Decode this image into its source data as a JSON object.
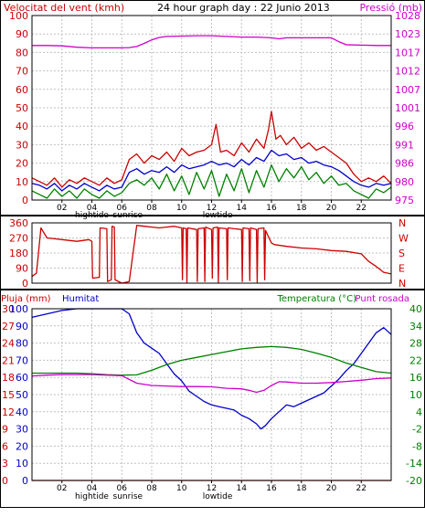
{
  "colors": {
    "red": "#cc0000",
    "magenta": "#cc00cc",
    "blue": "#0000cc",
    "green": "#008000",
    "grid": "#c0c0c0",
    "frame": "#000000"
  },
  "chart_data": [
    {
      "id": "wind-pressure",
      "type": "line",
      "title": "24 hour graph day : 22 Junio 2013",
      "left_axis_title": "Velocitat del vent (kmh)",
      "right_axis_title": "Pressió (mb)",
      "xlim": [
        0,
        24
      ],
      "x_ticks": [
        2,
        4,
        6,
        8,
        10,
        12,
        14,
        16,
        18,
        20,
        22
      ],
      "x_tick_labels": [
        "02",
        "04",
        "06",
        "08",
        "10",
        "12",
        "14",
        "16",
        "18",
        "20",
        "22"
      ],
      "x_marker_labels": [
        {
          "x": 4.0,
          "text": "hightide"
        },
        {
          "x": 6.4,
          "text": "sunrise"
        },
        {
          "x": 12.4,
          "text": "lowtide"
        }
      ],
      "left_ylim": [
        0,
        100
      ],
      "left_ticks": [
        0,
        10,
        20,
        30,
        40,
        50,
        60,
        70,
        80,
        90,
        100
      ],
      "right_ylim": [
        975,
        1028
      ],
      "right_tick_labels": [
        "975",
        "980",
        "986",
        "991",
        "996",
        "1001",
        "1007",
        "1012",
        "1017",
        "1023",
        "1028"
      ],
      "series": [
        {
          "name": "Pressió",
          "axis": "right",
          "color": "magenta",
          "x": [
            0,
            1,
            2,
            3,
            4,
            5,
            6,
            6.5,
            7,
            7.5,
            8,
            8.5,
            9,
            10,
            11,
            12,
            13,
            14,
            15,
            16,
            16.5,
            17,
            18,
            19,
            20,
            20.5,
            21,
            22,
            23,
            24
          ],
          "values": [
            1019.4,
            1019.4,
            1019.3,
            1018.9,
            1018.7,
            1018.7,
            1018.7,
            1018.8,
            1019.1,
            1020.0,
            1021.0,
            1021.7,
            1022.0,
            1022.1,
            1022.2,
            1022.2,
            1022.0,
            1021.8,
            1021.8,
            1021.6,
            1021.3,
            1021.6,
            1021.6,
            1021.6,
            1021.6,
            1020.5,
            1019.6,
            1019.5,
            1019.4,
            1019.4
          ]
        },
        {
          "name": "Ratxa",
          "axis": "left",
          "color": "red",
          "x": [
            0,
            0.5,
            1,
            1.5,
            2,
            2.5,
            3,
            3.5,
            4,
            4.5,
            5,
            5.5,
            6,
            6.5,
            7,
            7.5,
            8,
            8.5,
            9,
            9.5,
            10,
            10.5,
            11,
            11.5,
            12,
            12.3,
            12.6,
            13,
            13.5,
            14,
            14.5,
            15,
            15.5,
            15.8,
            16,
            16.3,
            16.6,
            17,
            17.5,
            18,
            18.5,
            19,
            19.5,
            20,
            20.5,
            21,
            21.5,
            22,
            22.5,
            23,
            23.5,
            24
          ],
          "values": [
            12,
            10,
            8,
            12,
            7,
            11,
            9,
            12,
            10,
            8,
            12,
            9,
            11,
            22,
            25,
            20,
            24,
            22,
            26,
            21,
            28,
            24,
            26,
            27,
            30,
            41,
            26,
            27,
            24,
            31,
            26,
            33,
            28,
            38,
            48,
            33,
            35,
            30,
            34,
            28,
            31,
            27,
            29,
            26,
            23,
            20,
            14,
            10,
            12,
            10,
            13,
            9
          ]
        },
        {
          "name": "Velocitat mitjana",
          "axis": "left",
          "color": "blue",
          "x": [
            0,
            0.5,
            1,
            1.5,
            2,
            2.5,
            3,
            3.5,
            4,
            4.5,
            5,
            5.5,
            6,
            6.5,
            7,
            7.5,
            8,
            8.5,
            9,
            9.5,
            10,
            10.5,
            11,
            11.5,
            12,
            12.5,
            13,
            13.5,
            14,
            14.5,
            15,
            15.5,
            16,
            16.5,
            17,
            17.5,
            18,
            18.5,
            19,
            19.5,
            20,
            20.5,
            21,
            21.5,
            22,
            22.5,
            23,
            23.5,
            24
          ],
          "values": [
            9,
            8,
            6,
            9,
            5,
            8,
            6,
            9,
            7,
            5,
            8,
            6,
            7,
            15,
            17,
            14,
            16,
            15,
            18,
            15,
            19,
            17,
            18,
            19,
            21,
            19,
            20,
            18,
            22,
            19,
            23,
            21,
            27,
            24,
            25,
            22,
            23,
            20,
            21,
            19,
            18,
            16,
            13,
            10,
            8,
            7,
            9,
            8,
            9
          ]
        },
        {
          "name": "Velocitat mínima",
          "axis": "left",
          "color": "green",
          "x": [
            0,
            0.5,
            1,
            1.5,
            2,
            2.5,
            3,
            3.5,
            4,
            4.5,
            5,
            5.5,
            6,
            6.5,
            7,
            7.5,
            8,
            8.5,
            9,
            9.5,
            10,
            10.5,
            11,
            11.5,
            12,
            12.5,
            13,
            13.5,
            14,
            14.5,
            15,
            15.5,
            16,
            16.5,
            17,
            17.5,
            18,
            18.5,
            19,
            19.5,
            20,
            20.5,
            21,
            21.5,
            22,
            22.5,
            23,
            23.5,
            24
          ],
          "values": [
            5,
            3,
            1,
            6,
            2,
            5,
            1,
            6,
            3,
            1,
            5,
            2,
            4,
            9,
            11,
            8,
            12,
            6,
            14,
            5,
            13,
            3,
            15,
            6,
            16,
            2,
            14,
            5,
            17,
            4,
            16,
            7,
            19,
            10,
            17,
            12,
            18,
            11,
            15,
            9,
            13,
            8,
            9,
            5,
            3,
            1,
            6,
            4,
            7
          ]
        }
      ]
    },
    {
      "id": "wind-direction",
      "type": "line",
      "xlim": [
        0,
        24
      ],
      "left_ylim": [
        0,
        360
      ],
      "left_ticks": [
        0,
        90,
        180,
        270,
        360
      ],
      "right_labels": [
        {
          "v": 360,
          "text": "N"
        },
        {
          "v": 270,
          "text": "W"
        },
        {
          "v": 180,
          "text": "S"
        },
        {
          "v": 90,
          "text": "E"
        },
        {
          "v": 0,
          "text": "N"
        }
      ],
      "series": [
        {
          "name": "Direcció del vent",
          "color": "red",
          "x": [
            0,
            0.3,
            0.6,
            1.0,
            1.5,
            2.0,
            3.0,
            3.8,
            4.0,
            4.05,
            4.5,
            4.55,
            5.0,
            5.05,
            5.3,
            5.35,
            5.5,
            5.55,
            6.0,
            6.5,
            7.0,
            7.5,
            8.0,
            8.5,
            9.0,
            9.5,
            10.0,
            10.05,
            10.1,
            10.3,
            10.35,
            10.4,
            11.0,
            11.05,
            11.1,
            11.5,
            11.55,
            11.6,
            12.0,
            12.05,
            12.1,
            12.4,
            12.45,
            12.5,
            13.0,
            13.05,
            13.1,
            13.5,
            14.0,
            14.05,
            14.1,
            14.5,
            14.55,
            14.6,
            15.0,
            15.05,
            15.1,
            15.5,
            15.55,
            15.6,
            16.0,
            16.2,
            17.0,
            18.0,
            19.0,
            20.0,
            21.0,
            22.0,
            22.5,
            23.0,
            23.5,
            24
          ],
          "values": [
            40,
            60,
            330,
            270,
            265,
            260,
            250,
            260,
            250,
            30,
            35,
            330,
            325,
            10,
            20,
            340,
            335,
            20,
            0,
            10,
            345,
            340,
            335,
            330,
            335,
            340,
            330,
            20,
            330,
            325,
            5,
            330,
            320,
            10,
            325,
            330,
            10,
            335,
            320,
            30,
            330,
            335,
            0,
            330,
            325,
            20,
            330,
            325,
            320,
            10,
            330,
            325,
            15,
            330,
            320,
            5,
            325,
            330,
            20,
            315,
            240,
            230,
            220,
            210,
            205,
            195,
            190,
            175,
            130,
            100,
            65,
            55
          ]
        }
      ]
    },
    {
      "id": "rain-humidity-temperature",
      "type": "line",
      "left_axis_title_1": "Pluja (mm)",
      "left_axis_title_2": "Humitat",
      "right_axis_title_1": "Temperatura (°C)",
      "right_axis_title_2": "Punt rosada",
      "xlim": [
        0,
        24
      ],
      "x_ticks": [
        2,
        4,
        6,
        8,
        10,
        12,
        14,
        16,
        18,
        20,
        22
      ],
      "x_tick_labels": [
        "02",
        "04",
        "06",
        "08",
        "10",
        "12",
        "14",
        "16",
        "18",
        "20",
        "22"
      ],
      "x_marker_labels": [
        {
          "x": 4.0,
          "text": "hightide"
        },
        {
          "x": 6.4,
          "text": "sunrise"
        },
        {
          "x": 12.4,
          "text": "lowtide"
        }
      ],
      "rain_ylim": [
        0,
        30
      ],
      "rain_ticks": [
        "0",
        "3",
        "6",
        "9",
        "12",
        "15",
        "18",
        "21",
        "24",
        "27",
        "30"
      ],
      "humidity_ylim": [
        0,
        100
      ],
      "humidity_ticks": [
        "0",
        "10",
        "20",
        "30",
        "40",
        "50",
        "60",
        "70",
        "80",
        "90",
        "100"
      ],
      "temp_ylim": [
        -20,
        40
      ],
      "temp_ticks": [
        "-20",
        "-14",
        "-8",
        "-2",
        "4",
        "10",
        "16",
        "22",
        "28",
        "34",
        "40"
      ],
      "series": [
        {
          "name": "Humitat",
          "axis": "humidity",
          "color": "blue",
          "x": [
            0,
            0.5,
            1,
            2,
            3,
            4,
            5,
            6,
            6.5,
            7,
            7.5,
            8,
            8.5,
            9,
            9.5,
            10,
            10.5,
            11,
            11.5,
            12,
            12.5,
            13,
            13.5,
            14,
            14.5,
            15,
            15.3,
            15.6,
            16,
            16.5,
            17,
            17.5,
            18,
            18.5,
            19,
            19.5,
            20,
            20.5,
            21,
            21.5,
            22,
            22.5,
            23,
            23.5,
            24
          ],
          "values": [
            95,
            96,
            97,
            99,
            100,
            100,
            100,
            100,
            97,
            86,
            80,
            77,
            74,
            68,
            62,
            58,
            52,
            49,
            46,
            44,
            43,
            42,
            41,
            38,
            36,
            33,
            30,
            32,
            36,
            40,
            44,
            43,
            45,
            47,
            49,
            51,
            55,
            59,
            64,
            68,
            74,
            80,
            86,
            89,
            85
          ]
        },
        {
          "name": "Temperatura",
          "axis": "temp",
          "color": "green",
          "x": [
            0,
            1,
            2,
            3,
            4,
            5,
            6,
            7,
            8,
            9,
            10,
            11,
            12,
            13,
            14,
            15,
            16,
            17,
            18,
            19,
            20,
            21,
            22,
            23,
            24
          ],
          "values": [
            17.5,
            17.5,
            17.5,
            17.5,
            17.3,
            17.0,
            16.8,
            16.9,
            18.5,
            20.5,
            22.0,
            23.0,
            24.0,
            25.0,
            26.0,
            26.5,
            26.8,
            26.5,
            25.8,
            24.5,
            23.0,
            21.0,
            19.5,
            18.0,
            17.5
          ]
        },
        {
          "name": "Punt rosada",
          "axis": "temp",
          "color": "magenta",
          "x": [
            0,
            1,
            2,
            3,
            4,
            5,
            6,
            7,
            8,
            9,
            10,
            11,
            12,
            13,
            14,
            14.5,
            15,
            15.5,
            16,
            16.5,
            17,
            18,
            19,
            20,
            21,
            22,
            23,
            24
          ],
          "values": [
            16.5,
            16.8,
            17.0,
            17.0,
            17.0,
            16.8,
            16.6,
            14.0,
            13.2,
            13.0,
            12.8,
            12.8,
            12.7,
            12.2,
            12.0,
            11.5,
            10.8,
            11.5,
            13.2,
            14.5,
            14.4,
            14.0,
            14.0,
            14.2,
            14.6,
            15.0,
            15.6,
            15.8
          ]
        },
        {
          "name": "Pluja",
          "axis": "rain",
          "color": "red",
          "x": [
            0,
            24
          ],
          "values": [
            0,
            0
          ]
        }
      ]
    }
  ]
}
